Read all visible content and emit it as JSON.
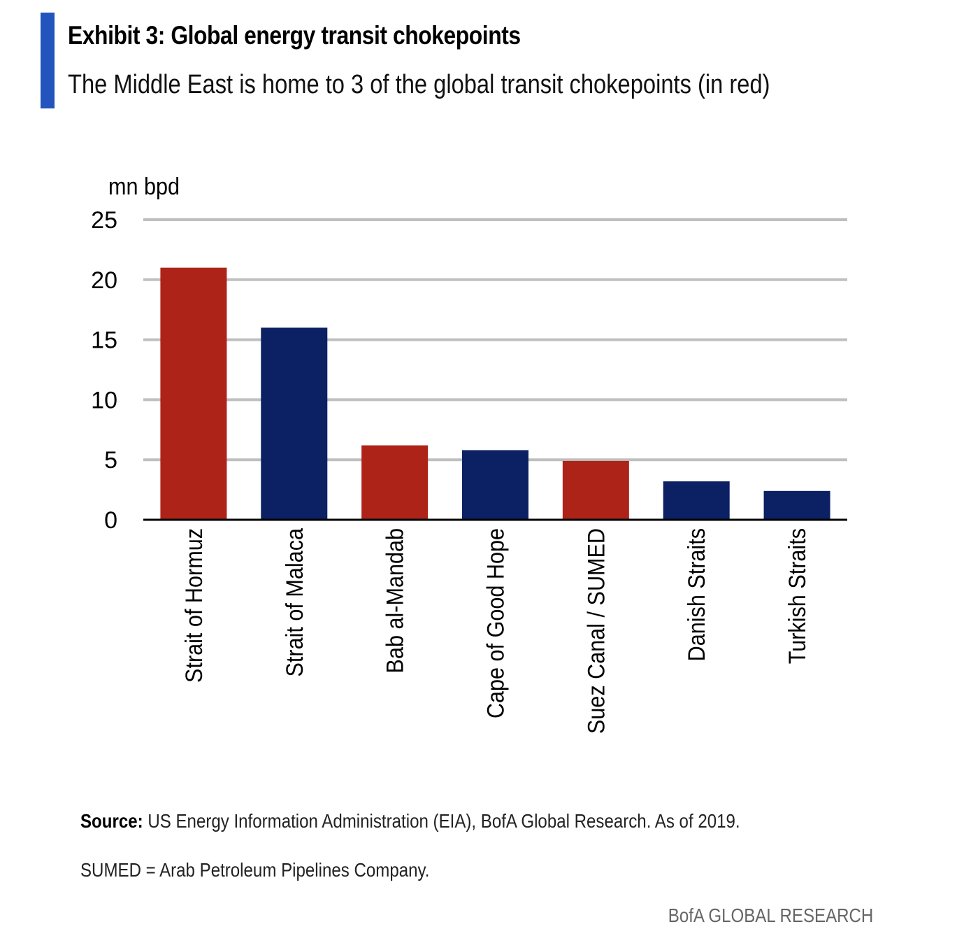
{
  "header": {
    "title": "Exhibit 3: Global energy transit chokepoints",
    "subtitle": "The Middle East is home to 3 of the global transit chokepoints (in red)",
    "accent_color": "#2353bd"
  },
  "chart_data": {
    "type": "bar",
    "title": "Exhibit 3: Global energy transit chokepoints",
    "subtitle": "The Middle East is home to 3 of the global transit chokepoints (in red)",
    "xlabel": "",
    "ylabel": "mn bpd",
    "ylim": [
      0,
      25
    ],
    "yticks": [
      0,
      5,
      10,
      15,
      20,
      25
    ],
    "grid": true,
    "legend": "none",
    "categories": [
      "Strait of Hormuz",
      "Strait of Malaca",
      "Bab al-Mandab",
      "Cape of Good Hope",
      "Suez Canal / SUMED",
      "Danish Straits",
      "Turkish Straits"
    ],
    "values": [
      21.0,
      16.0,
      6.2,
      5.8,
      4.9,
      3.2,
      2.4
    ],
    "middle_east": [
      true,
      false,
      true,
      false,
      true,
      false,
      false
    ],
    "colors": {
      "middle_east": "#ae2318",
      "other": "#0b2164",
      "grid": "#bfbfbf",
      "axis": "#000000"
    }
  },
  "footer": {
    "source_label": "Source:",
    "source_text": " US Energy Information Administration (EIA), BofA Global Research. As of 2019.",
    "note": "SUMED = Arab Petroleum Pipelines Company.",
    "brand": "BofA GLOBAL RESEARCH"
  }
}
